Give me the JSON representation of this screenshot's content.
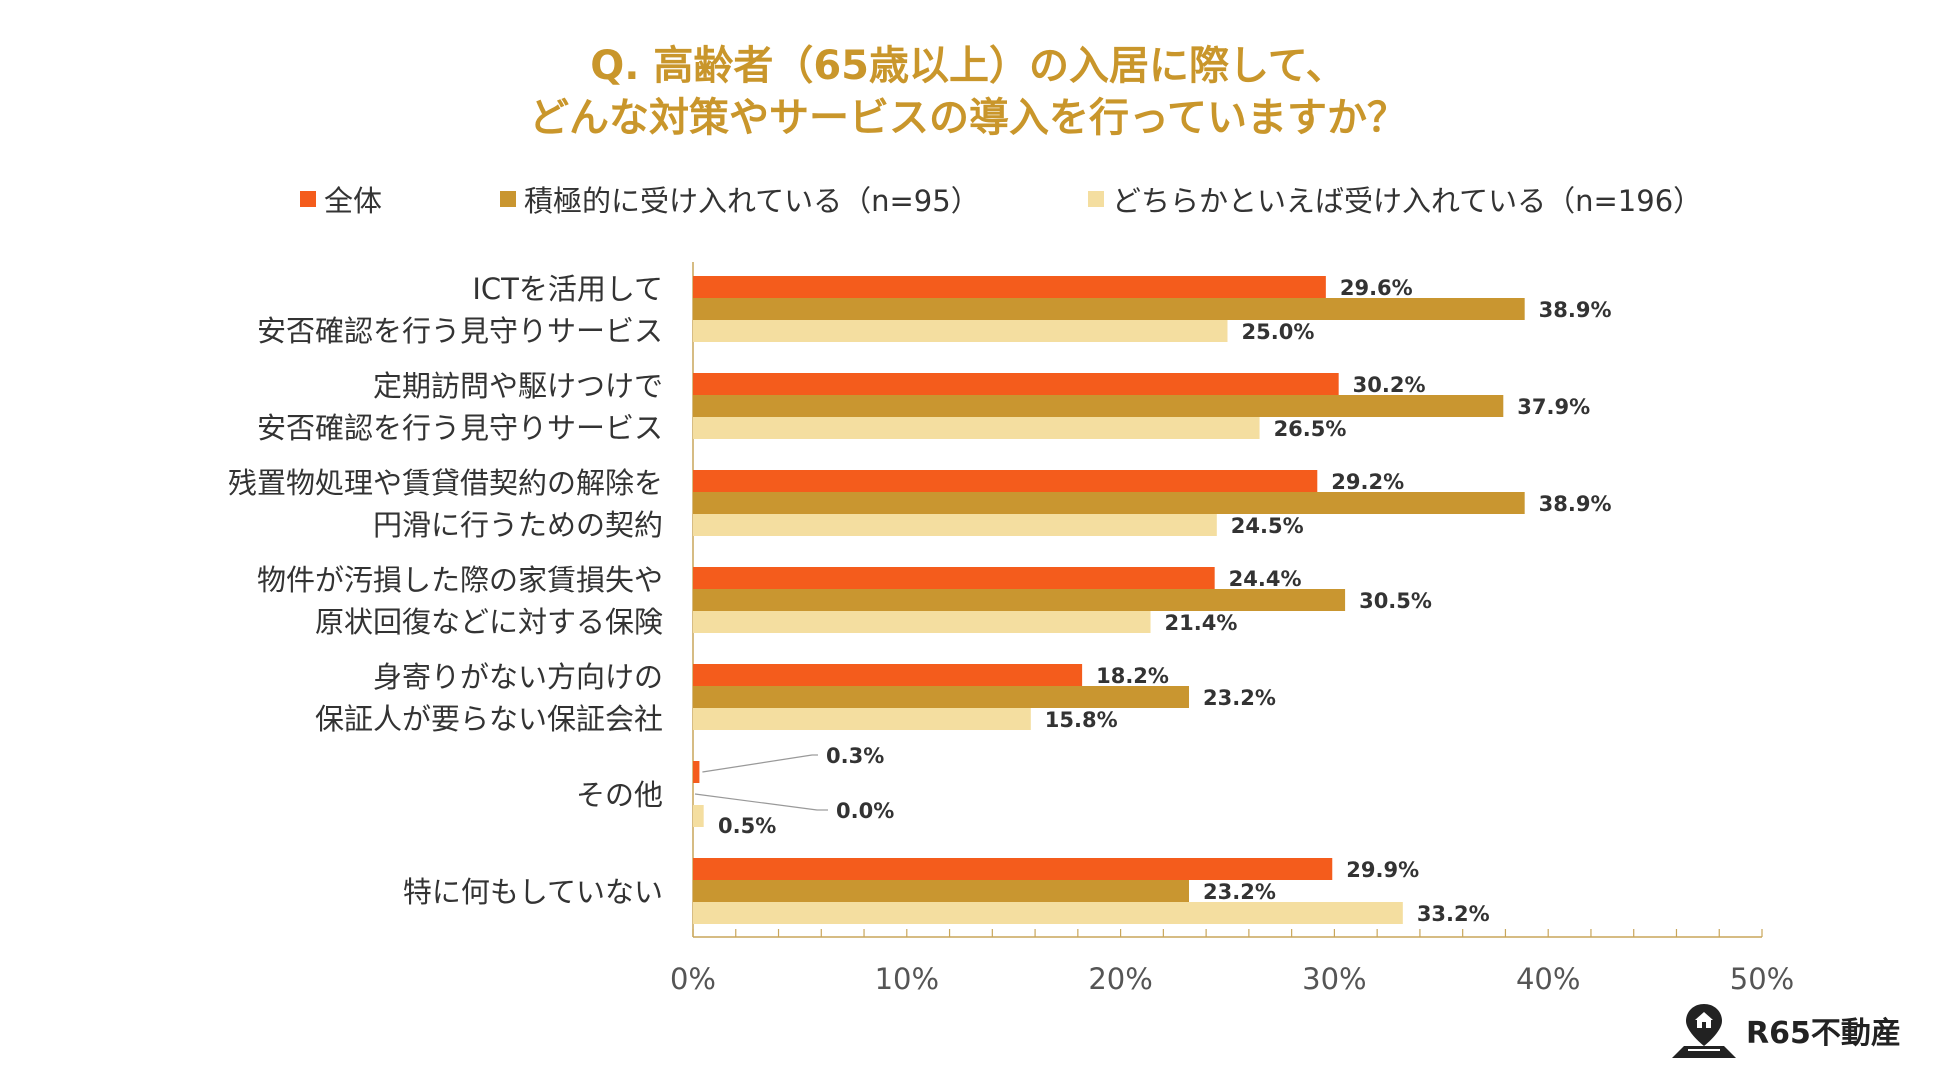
{
  "title": {
    "line1": "Q. 高齢者（65歳以上）の入居に際して、",
    "line2": "どんな対策やサービスの導入を行っていますか？"
  },
  "colors": {
    "title": "#c9962b",
    "series": [
      "#f45c1c",
      "#c99630",
      "#f4dea0"
    ],
    "axis": "#c9a65a",
    "text": "#333333",
    "leader": "#999999"
  },
  "legend": [
    "全体",
    "積極的に受け入れている（n=95）",
    "どちらかといえば受け入れている（n=196）"
  ],
  "logo": {
    "text": "R65不動産",
    "icon": "map-pin-home-icon"
  },
  "chart_data": {
    "type": "bar",
    "orientation": "horizontal",
    "categories": [
      [
        "ICTを活用して",
        "安否確認を行う見守りサービス"
      ],
      [
        "定期訪問や駆けつけで",
        "安否確認を行う見守りサービス"
      ],
      [
        "残置物処理や賃貸借契約の解除を",
        "円滑に行うための契約"
      ],
      [
        "物件が汚損した際の家賃損失や",
        "原状回復などに対する保険"
      ],
      [
        "身寄りがない方向けの",
        "保証人が要らない保証会社"
      ],
      [
        "その他"
      ],
      [
        "特に何もしていない"
      ]
    ],
    "series": [
      {
        "name": "全体",
        "values": [
          29.6,
          30.2,
          29.2,
          24.4,
          18.2,
          0.3,
          29.9
        ]
      },
      {
        "name": "積極的に受け入れている（n=95）",
        "values": [
          38.9,
          37.9,
          38.9,
          30.5,
          23.2,
          0.0,
          23.2
        ]
      },
      {
        "name": "どちらかといえば受け入れている（n=196）",
        "values": [
          25.0,
          26.5,
          24.5,
          21.4,
          15.8,
          0.5,
          33.2
        ]
      }
    ],
    "value_labels": [
      [
        "29.6%",
        "30.2%",
        "29.2%",
        "24.4%",
        "18.2%",
        "0.3%",
        "29.9%"
      ],
      [
        "38.9%",
        "37.9%",
        "38.9%",
        "30.5%",
        "23.2%",
        "0.0%",
        "23.2%"
      ],
      [
        "25.0%",
        "26.5%",
        "24.5%",
        "21.4%",
        "15.8%",
        "0.5%",
        "33.2%"
      ]
    ],
    "xlim": [
      0,
      50
    ],
    "xticks": [
      "0%",
      "10%",
      "20%",
      "30%",
      "40%",
      "50%"
    ],
    "minor_ticks_per_major": 5
  }
}
